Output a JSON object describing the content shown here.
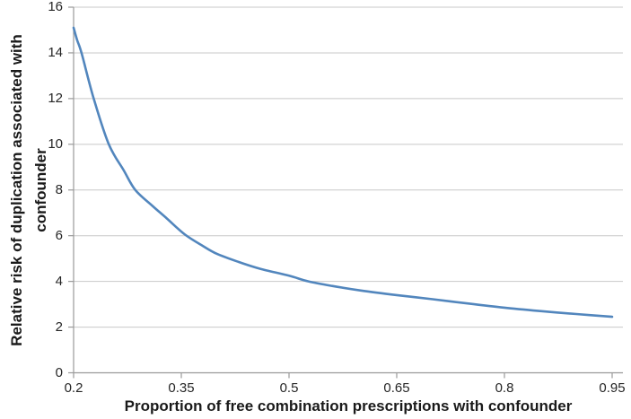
{
  "figure": {
    "background": "#ffffff"
  },
  "chart_data": {
    "type": "line",
    "title": "",
    "xlabel": "Proportion of free combination prescriptions with confounder",
    "ylabel": "Relative risk of duplication associated with confounder",
    "ylabel_lines": [
      "Relative risk of duplication associated with",
      "confounder"
    ],
    "xlim": [
      0.2,
      0.965
    ],
    "ylim": [
      0,
      16
    ],
    "x_ticks": [
      0.2,
      0.35,
      0.5,
      0.65,
      0.8,
      0.95
    ],
    "x_tick_labels": [
      "0.2",
      "0.35",
      "0.5",
      "0.65",
      "0.8",
      "0.95"
    ],
    "y_ticks": [
      0,
      2,
      4,
      6,
      8,
      10,
      12,
      14,
      16
    ],
    "y_tick_labels": [
      "0",
      "2",
      "4",
      "6",
      "8",
      "10",
      "12",
      "14",
      "16"
    ],
    "grid": "horizontal-only",
    "legend": "none",
    "series": [
      {
        "name": "relative-risk-of-duplication-vs-proportion",
        "color": "#5286BD",
        "points": [
          [
            0.2,
            15.1
          ],
          [
            0.205,
            14.55
          ],
          [
            0.211,
            14.0
          ],
          [
            0.228,
            12.0
          ],
          [
            0.249,
            10.0
          ],
          [
            0.27,
            8.85
          ],
          [
            0.286,
            8.0
          ],
          [
            0.31,
            7.3
          ],
          [
            0.33,
            6.75
          ],
          [
            0.355,
            6.05
          ],
          [
            0.38,
            5.55
          ],
          [
            0.4,
            5.2
          ],
          [
            0.43,
            4.85
          ],
          [
            0.46,
            4.55
          ],
          [
            0.5,
            4.25
          ],
          [
            0.527,
            4.0
          ],
          [
            0.56,
            3.8
          ],
          [
            0.6,
            3.6
          ],
          [
            0.65,
            3.4
          ],
          [
            0.7,
            3.22
          ],
          [
            0.75,
            3.03
          ],
          [
            0.8,
            2.85
          ],
          [
            0.85,
            2.7
          ],
          [
            0.9,
            2.57
          ],
          [
            0.95,
            2.45
          ]
        ]
      }
    ],
    "colors": {
      "gridline": "#c8c8c8",
      "axis": "#9a9a9a",
      "tick_text": "#262626",
      "title_text": "#1a1a1a"
    }
  }
}
